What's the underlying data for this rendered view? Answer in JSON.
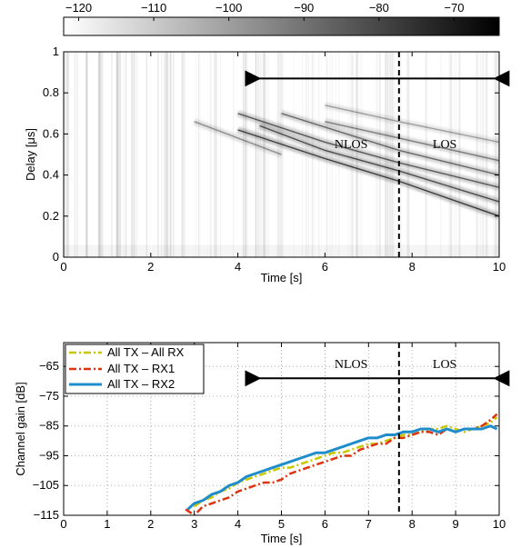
{
  "chart_data": [
    {
      "type": "heatmap",
      "title": "",
      "xlabel": "Time [s]",
      "ylabel": "Delay [μs]",
      "xlim": [
        0,
        10
      ],
      "ylim": [
        0,
        1
      ],
      "xticks": [
        0,
        2,
        4,
        6,
        8,
        10
      ],
      "yticks": [
        0,
        0.2,
        0.4,
        0.6,
        0.8,
        1
      ],
      "colorbar": {
        "ticks": [
          -120,
          -110,
          -100,
          -90,
          -80,
          -70
        ],
        "range": [
          -122,
          -64
        ],
        "colormap": "white-to-black",
        "placement": "top"
      },
      "multipath_traces": [
        {
          "x": [
            4.0,
            6.0,
            7.7,
            10.0
          ],
          "y": [
            0.62,
            0.48,
            0.37,
            0.2
          ]
        },
        {
          "x": [
            4.5,
            6.0,
            7.7,
            10.0
          ],
          "y": [
            0.64,
            0.52,
            0.42,
            0.27
          ]
        },
        {
          "x": [
            4.0,
            6.0,
            7.7,
            10.0
          ],
          "y": [
            0.7,
            0.56,
            0.46,
            0.34
          ]
        },
        {
          "x": [
            5.0,
            6.5,
            7.7,
            10.0
          ],
          "y": [
            0.7,
            0.6,
            0.52,
            0.4
          ]
        },
        {
          "x": [
            6.0,
            7.7,
            10.0
          ],
          "y": [
            0.66,
            0.58,
            0.47
          ]
        },
        {
          "x": [
            3.0,
            4.0,
            5.0
          ],
          "y": [
            0.66,
            0.58,
            0.5
          ]
        },
        {
          "x": [
            6.0,
            7.7,
            10.0
          ],
          "y": [
            0.74,
            0.66,
            0.56
          ]
        }
      ],
      "divider_x": 7.7,
      "annotations": [
        {
          "text": "NLOS",
          "x": 6.6,
          "y": 0.53
        },
        {
          "text": "LOS",
          "x": 8.75,
          "y": 0.53
        }
      ],
      "arrow": {
        "x": [
          4.5,
          9.9
        ],
        "y": 0.87
      }
    },
    {
      "type": "line",
      "title": "",
      "xlabel": "Time [s]",
      "ylabel": "Channel gain [dB]",
      "xlim": [
        0,
        10
      ],
      "ylim": [
        -115,
        -57
      ],
      "xticks": [
        0,
        1,
        2,
        3,
        4,
        5,
        6,
        7,
        8,
        9,
        10
      ],
      "yticks": [
        -115,
        -105,
        -95,
        -85,
        -75,
        -65
      ],
      "grid": true,
      "legend": "top-left",
      "series": [
        {
          "name": "All TX – All RX",
          "color": "#c8c800",
          "style": "dash-dot",
          "x": [
            3.0,
            3.2,
            3.4,
            3.6,
            3.8,
            4.0,
            4.2,
            4.4,
            4.6,
            4.8,
            5.0,
            5.2,
            5.4,
            5.6,
            5.8,
            6.0,
            6.2,
            6.4,
            6.6,
            6.8,
            7.0,
            7.2,
            7.4,
            7.6,
            7.8,
            8.0,
            8.2,
            8.4,
            8.6,
            8.8,
            9.0,
            9.2,
            9.4,
            9.6,
            9.8,
            9.95
          ],
          "values": [
            -112,
            -110,
            -109,
            -107,
            -106,
            -104,
            -103,
            -102,
            -101,
            -100,
            -99,
            -99,
            -98,
            -97,
            -96,
            -95,
            -94,
            -94,
            -93,
            -92,
            -91,
            -91,
            -90,
            -89,
            -88,
            -88,
            -87,
            -86,
            -86,
            -85,
            -86,
            -87,
            -86,
            -85,
            -84,
            -82
          ]
        },
        {
          "name": "All TX – RX1",
          "color": "#dd3311",
          "style": "dash-dot",
          "x": [
            2.8,
            3.0,
            3.2,
            3.4,
            3.6,
            3.8,
            4.0,
            4.2,
            4.4,
            4.6,
            4.8,
            5.0,
            5.2,
            5.4,
            5.6,
            5.8,
            6.0,
            6.2,
            6.4,
            6.6,
            6.8,
            7.0,
            7.2,
            7.4,
            7.6,
            7.8,
            8.0,
            8.2,
            8.4,
            8.6,
            8.8,
            9.0,
            9.2,
            9.4,
            9.6,
            9.8,
            9.95
          ],
          "values": [
            -113,
            -115,
            -112,
            -111,
            -110,
            -109,
            -107,
            -106,
            -105,
            -104,
            -104,
            -103,
            -101,
            -100,
            -99,
            -98,
            -97,
            -96,
            -95,
            -95,
            -93,
            -92,
            -91,
            -91,
            -89,
            -89,
            -88,
            -87,
            -87,
            -88,
            -86,
            -87,
            -86,
            -86,
            -85,
            -83,
            -81
          ]
        },
        {
          "name": "All TX – RX2",
          "color": "#1f8ccb",
          "style": "solid",
          "x": [
            2.85,
            3.0,
            3.2,
            3.4,
            3.6,
            3.8,
            4.0,
            4.2,
            4.4,
            4.6,
            4.8,
            5.0,
            5.2,
            5.4,
            5.6,
            5.8,
            6.0,
            6.2,
            6.4,
            6.6,
            6.8,
            7.0,
            7.2,
            7.4,
            7.6,
            7.8,
            8.0,
            8.2,
            8.4,
            8.6,
            8.8,
            9.0,
            9.2,
            9.4,
            9.6,
            9.8,
            9.95
          ],
          "values": [
            -113,
            -111,
            -110,
            -108,
            -107,
            -105,
            -104,
            -102,
            -101,
            -100,
            -99,
            -98,
            -97,
            -96,
            -95,
            -94,
            -94,
            -93,
            -92,
            -91,
            -90,
            -89,
            -89,
            -88,
            -88,
            -87,
            -87,
            -86,
            -86,
            -87,
            -86,
            -87,
            -86,
            -86,
            -86,
            -85,
            -86
          ]
        }
      ],
      "divider_x": 7.7,
      "annotations": [
        {
          "text": "NLOS",
          "x": 6.6,
          "y": -65.5
        },
        {
          "text": "LOS",
          "x": 8.75,
          "y": -65.5
        }
      ],
      "arrow": {
        "x": [
          4.5,
          9.9
        ],
        "y": -69
      }
    }
  ]
}
